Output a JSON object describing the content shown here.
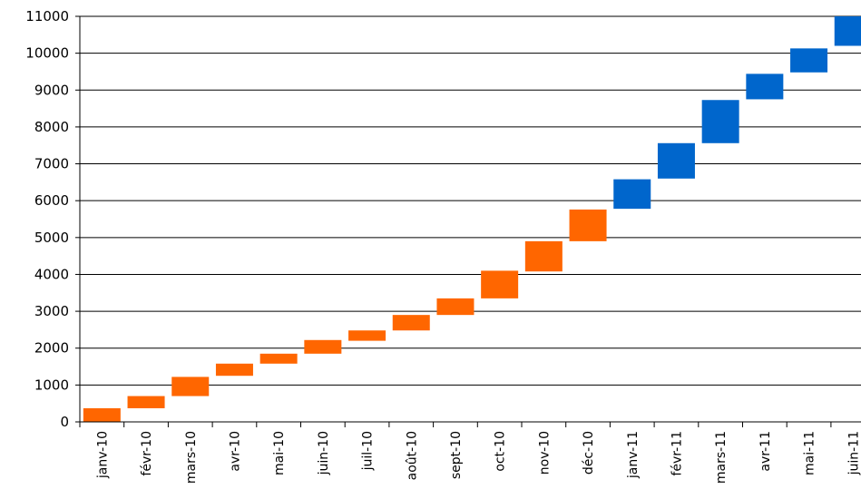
{
  "chart_data": {
    "type": "bar",
    "subtype": "floating-bar",
    "title": "",
    "xlabel": "",
    "ylabel": "",
    "ylim": [
      0,
      11000
    ],
    "yticks": [
      0,
      1000,
      2000,
      3000,
      4000,
      5000,
      6000,
      7000,
      8000,
      9000,
      10000,
      11000
    ],
    "grid": true,
    "legend": "none",
    "colors": {
      "year_2010": "#FF6600",
      "year_2011": "#0066CC"
    },
    "categories": [
      "janv-10",
      "févr-10",
      "mars-10",
      "avr-10",
      "mai-10",
      "juin-10",
      "juil-10",
      "août-10",
      "sept-10",
      "oct-10",
      "nov-10",
      "déc-10",
      "janv-11",
      "févr-11",
      "mars-11",
      "avr-11",
      "mai-11",
      "juin-11"
    ],
    "series": [
      {
        "low": [
          0,
          370,
          700,
          1250,
          1580,
          1850,
          2200,
          2480,
          2900,
          3350,
          4080,
          4900,
          5780,
          6600,
          7560,
          8750,
          9480,
          10200
        ],
        "high": [
          370,
          700,
          1220,
          1580,
          1850,
          2220,
          2480,
          2900,
          3350,
          4100,
          4900,
          5760,
          6580,
          7560,
          8730,
          9440,
          10130,
          11000
        ],
        "colors": [
          "#FF6600",
          "#FF6600",
          "#FF6600",
          "#FF6600",
          "#FF6600",
          "#FF6600",
          "#FF6600",
          "#FF6600",
          "#FF6600",
          "#FF6600",
          "#FF6600",
          "#FF6600",
          "#0066CC",
          "#0066CC",
          "#0066CC",
          "#0066CC",
          "#0066CC",
          "#0066CC"
        ]
      }
    ]
  }
}
